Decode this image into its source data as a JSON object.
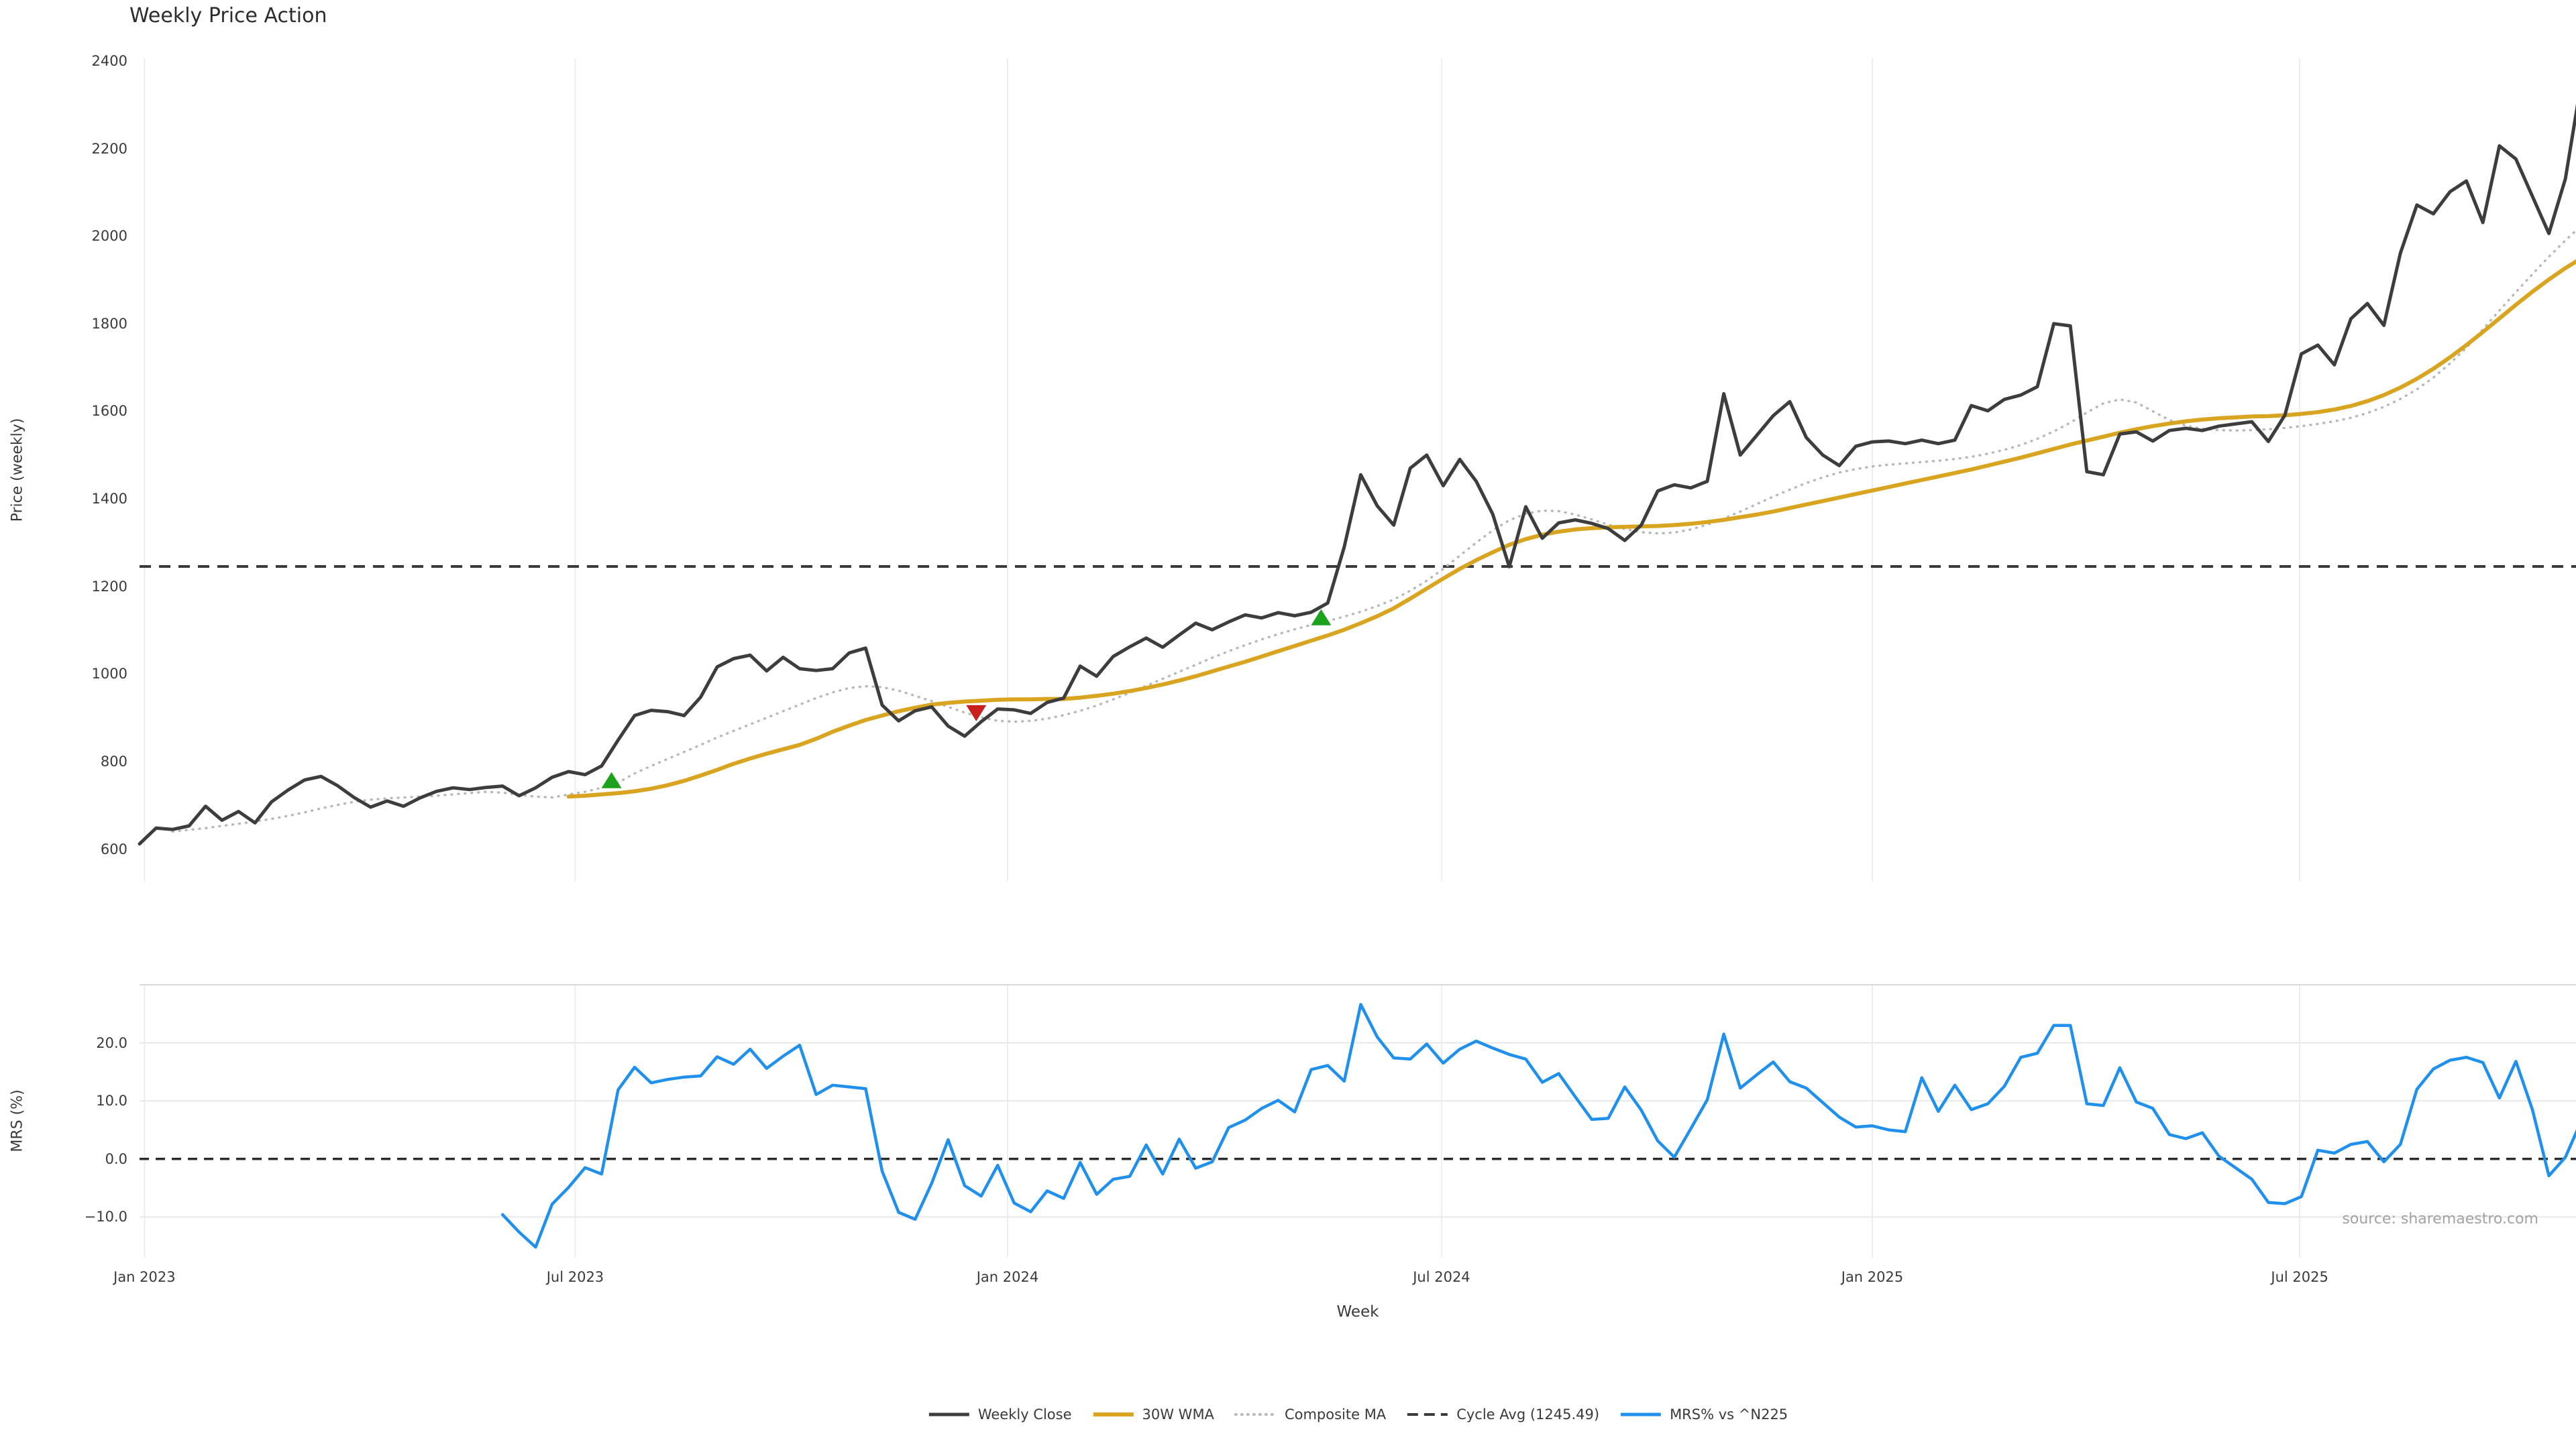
{
  "title": "Weekly Price Action",
  "source_note": "source: sharemaestro.com",
  "colors": {
    "weekly_close": "#3d3d3d",
    "wma30": "#d9a521",
    "composite_ma": "#b9b9b9",
    "cycle_avg": "#3a3a3a",
    "mrs": "#2090ed",
    "buy_marker": "#1da21d",
    "sell_marker": "#c9201d",
    "grid": "#ebedf0",
    "hgrid": "#e8e8e8",
    "panel_border": "#d9d9d9",
    "tick_text": "#3a3a3a",
    "source_text": "#a2a2a2"
  },
  "legend": {
    "items": [
      {
        "label": "Weekly Close",
        "color": "#3d3d3d",
        "style": "solid",
        "width": 5
      },
      {
        "label": "30W WMA",
        "color": "#d9a521",
        "style": "solid",
        "width": 6
      },
      {
        "label": "Composite MA",
        "color": "#b9b9b9",
        "style": "dotted",
        "width": 4
      },
      {
        "label": "Cycle Avg (1245.49)",
        "color": "#3a3a3a",
        "style": "dashed",
        "width": 4
      },
      {
        "label": "MRS% vs ^N225",
        "color": "#2090ed",
        "style": "solid",
        "width": 5
      }
    ]
  },
  "chart_data": [
    {
      "type": "line",
      "panel": "price",
      "title": "Weekly Price Action",
      "ylabel": "Price (weekly)",
      "ylim": [
        526,
        2406
      ],
      "yticks": [
        600,
        800,
        1000,
        1200,
        1400,
        1600,
        1800,
        2000,
        2200,
        2400
      ],
      "xticks": [
        {
          "week": 0.3,
          "label": "Jan 2023"
        },
        {
          "week": 26.4,
          "label": "Jul 2023"
        },
        {
          "week": 52.6,
          "label": "Jan 2024"
        },
        {
          "week": 78.9,
          "label": "Jul 2024"
        },
        {
          "week": 105.0,
          "label": "Jan 2025"
        },
        {
          "week": 130.9,
          "label": "Jul 2025"
        }
      ],
      "grid": "vertical",
      "cycle_avg_value": 1245.49,
      "series": [
        {
          "name": "Weekly Close",
          "style": "solid",
          "width": 5,
          "color": "#3d3d3d",
          "start_week": 0,
          "values": [
            612,
            648,
            645,
            653,
            698,
            666,
            686,
            660,
            708,
            735,
            758,
            766,
            745,
            718,
            696,
            710,
            698,
            717,
            732,
            740,
            736,
            741,
            744,
            722,
            740,
            764,
            777,
            770,
            790,
            849,
            905,
            917,
            914,
            905,
            947,
            1016,
            1035,
            1043,
            1007,
            1038,
            1012,
            1008,
            1012,
            1048,
            1059,
            929,
            893,
            916,
            925,
            881,
            858,
            891,
            920,
            918,
            910,
            935,
            945,
            1018,
            995,
            1040,
            1062,
            1082,
            1061,
            1089,
            1116,
            1101,
            1119,
            1135,
            1128,
            1140,
            1133,
            1141,
            1162,
            1290,
            1455,
            1384,
            1340,
            1470,
            1500,
            1430,
            1490,
            1440,
            1365,
            1245,
            1382,
            1310,
            1345,
            1352,
            1344,
            1332,
            1305,
            1340,
            1418,
            1432,
            1425,
            1440,
            1640,
            1500,
            1545,
            1590,
            1622,
            1540,
            1500,
            1476,
            1520,
            1530,
            1532,
            1526,
            1534,
            1526,
            1534,
            1613,
            1601,
            1627,
            1637,
            1656,
            1800,
            1795,
            1462,
            1455,
            1548,
            1553,
            1532,
            1556,
            1561,
            1556,
            1566,
            1571,
            1576,
            1531,
            1591,
            1731,
            1751,
            1706,
            1811,
            1846,
            1796,
            1961,
            2071,
            2051,
            2101,
            2126,
            2031,
            2206,
            2176,
            2091,
            2006,
            2131,
            2361
          ]
        },
        {
          "name": "30W WMA",
          "style": "solid",
          "width": 6,
          "color": "#d9a521",
          "start_week": 26,
          "values": [
            720,
            722,
            725,
            728,
            732,
            738,
            746,
            756,
            768,
            781,
            795,
            807,
            818,
            828,
            838,
            852,
            868,
            882,
            895,
            905,
            915,
            923,
            930,
            934,
            937,
            939,
            941,
            942,
            942,
            943,
            943,
            946,
            950,
            955,
            961,
            968,
            976,
            985,
            995,
            1006,
            1017,
            1028,
            1040,
            1052,
            1064,
            1076,
            1088,
            1101,
            1116,
            1132,
            1150,
            1172,
            1195,
            1218,
            1240,
            1260,
            1278,
            1295,
            1308,
            1318,
            1325,
            1330,
            1333,
            1335,
            1336,
            1337,
            1338,
            1340,
            1343,
            1347,
            1352,
            1358,
            1364,
            1371,
            1379,
            1387,
            1395,
            1403,
            1411,
            1419,
            1427,
            1435,
            1443,
            1451,
            1459,
            1467,
            1476,
            1485,
            1494,
            1504,
            1514,
            1524,
            1533,
            1542,
            1551,
            1559,
            1566,
            1572,
            1577,
            1581,
            1584,
            1586,
            1588,
            1589,
            1591,
            1594,
            1598,
            1604,
            1612,
            1623,
            1637,
            1654,
            1674,
            1697,
            1723,
            1751,
            1781,
            1812,
            1843,
            1873,
            1901,
            1927,
            1950
          ]
        },
        {
          "name": "Composite MA",
          "style": "dotted",
          "width": 3.5,
          "color": "#b9b9b9",
          "start_week": 2,
          "values": [
            640,
            644,
            648,
            653,
            658,
            663,
            669,
            676,
            684,
            693,
            701,
            708,
            713,
            716,
            718,
            720,
            722,
            725,
            728,
            731,
            729,
            724,
            720,
            718,
            725,
            731,
            740,
            752,
            773,
            790,
            806,
            822,
            838,
            855,
            870,
            885,
            900,
            915,
            930,
            945,
            958,
            968,
            972,
            970,
            962,
            950,
            938,
            925,
            912,
            901,
            893,
            891,
            893,
            898,
            906,
            916,
            928,
            942,
            957,
            973,
            989,
            1005,
            1021,
            1037,
            1052,
            1066,
            1079,
            1091,
            1102,
            1112,
            1121,
            1131,
            1142,
            1155,
            1170,
            1190,
            1213,
            1240,
            1270,
            1300,
            1328,
            1351,
            1366,
            1373,
            1372,
            1364,
            1353,
            1341,
            1331,
            1324,
            1321,
            1323,
            1330,
            1341,
            1355,
            1371,
            1388,
            1405,
            1421,
            1436,
            1449,
            1460,
            1468,
            1474,
            1478,
            1481,
            1484,
            1487,
            1491,
            1496,
            1503,
            1512,
            1523,
            1537,
            1554,
            1574,
            1597,
            1618,
            1627,
            1620,
            1600,
            1580,
            1567,
            1560,
            1557,
            1556,
            1557,
            1559,
            1562,
            1566,
            1571,
            1577,
            1585,
            1596,
            1610,
            1628,
            1650,
            1677,
            1709,
            1745,
            1787,
            1830,
            1872,
            1913,
            1953,
            1990,
            2025
          ]
        },
        {
          "name": "Cycle Avg (1245.49)",
          "style": "dashed",
          "width": 4,
          "color": "#3a3a3a",
          "constant": 1245.49
        }
      ],
      "markers": {
        "buy": {
          "shape": "triangle-up",
          "color": "#1da21d",
          "points": [
            {
              "week": 28.6,
              "value": 756
            },
            {
              "week": 71.6,
              "value": 1128
            }
          ]
        },
        "sell": {
          "shape": "triangle-down",
          "color": "#c9201d",
          "points": [
            {
              "week": 50.7,
              "value": 912
            }
          ]
        }
      }
    },
    {
      "type": "line",
      "panel": "mrs",
      "ylabel": "MRS (%)",
      "xlabel": "Week",
      "ylim": [
        -17,
        30
      ],
      "yticks": [
        {
          "value": 20,
          "label": "20.0"
        },
        {
          "value": 10,
          "label": "10.0"
        },
        {
          "value": 0,
          "label": "0.0"
        },
        {
          "value": -10,
          "label": "−10.0"
        }
      ],
      "zero_line_dashed": true,
      "series": [
        {
          "name": "MRS% vs ^N225",
          "style": "solid",
          "width": 4.5,
          "color": "#2090ed",
          "start_week": 22,
          "values": [
            -9.6,
            -12.6,
            -15.2,
            -7.8,
            -4.9,
            -1.5,
            -2.6,
            11.9,
            15.8,
            13.1,
            13.7,
            14.1,
            14.3,
            17.6,
            16.3,
            18.9,
            15.6,
            17.7,
            19.6,
            11.1,
            12.7,
            12.4,
            12.1,
            -2.1,
            -9.2,
            -10.4,
            -4.2,
            3.3,
            -4.6,
            -6.4,
            -1.1,
            -7.6,
            -9.1,
            -5.5,
            -6.8,
            -0.6,
            -6.1,
            -3.5,
            -3.0,
            2.4,
            -2.6,
            3.4,
            -1.6,
            -0.5,
            5.4,
            6.7,
            8.7,
            10.1,
            8.1,
            15.4,
            16.1,
            13.4,
            26.6,
            21.0,
            17.4,
            17.2,
            19.8,
            16.5,
            18.9,
            20.3,
            19.1,
            18.0,
            17.2,
            13.2,
            14.7,
            10.7,
            6.8,
            7.0,
            12.4,
            8.4,
            3.1,
            0.3,
            5.2,
            10.2,
            21.5,
            12.2,
            14.5,
            16.7,
            13.3,
            12.2,
            9.7,
            7.2,
            5.5,
            5.7,
            5.0,
            4.7,
            14.0,
            8.2,
            12.7,
            8.5,
            9.5,
            12.5,
            17.5,
            18.2,
            23.0,
            23.0,
            9.5,
            9.2,
            15.7,
            9.8,
            8.7,
            4.2,
            3.5,
            4.5,
            0.5,
            -1.5,
            -3.5,
            -7.5,
            -7.7,
            -6.5,
            1.5,
            1.0,
            2.5,
            3.0,
            -0.5,
            2.5,
            12.0,
            15.5,
            17.0,
            17.5,
            16.6,
            10.5,
            16.8,
            8.5,
            -2.9,
            0.3,
            6.8
          ]
        }
      ]
    }
  ]
}
